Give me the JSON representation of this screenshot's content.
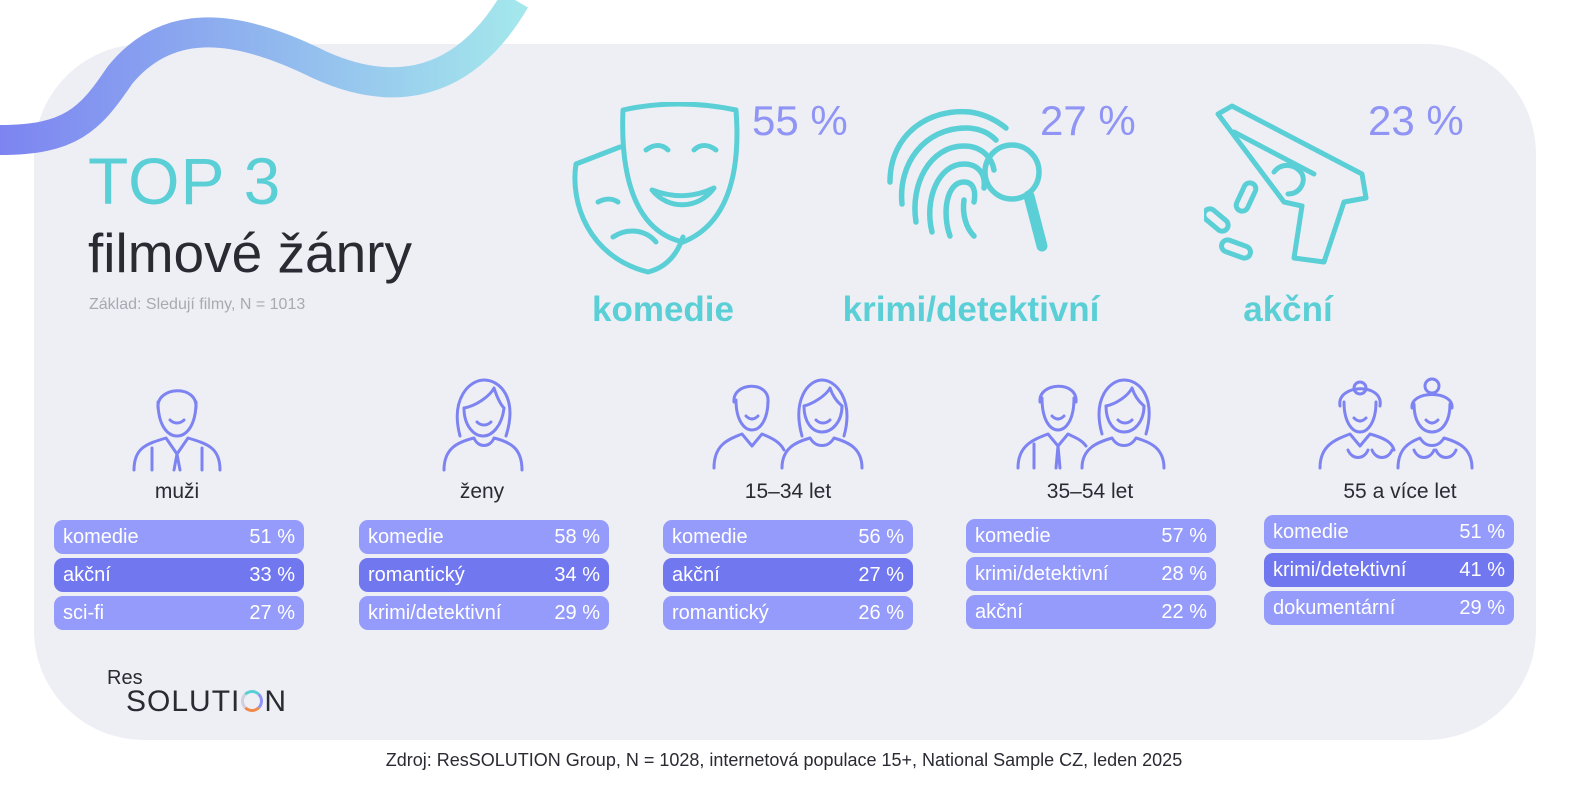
{
  "header": {
    "top": "TOP 3",
    "main": "filmové žánry",
    "basis": "Základ: Sledují filmy, N = 1013"
  },
  "top_genres": [
    {
      "label": "komedie",
      "pct": "55 %",
      "icon": "theater-masks-icon"
    },
    {
      "label": "krimi/detektivní",
      "pct": "27 %",
      "icon": "fingerprint-magnifier-icon"
    },
    {
      "label": "akční",
      "pct": "23 %",
      "icon": "pistol-icon"
    }
  ],
  "groups": [
    {
      "label": "muži",
      "icon": "man-icon",
      "rows": [
        [
          "komedie",
          "51 %"
        ],
        [
          "akční",
          "33 %"
        ],
        [
          "sci-fi",
          "27 %"
        ]
      ]
    },
    {
      "label": "ženy",
      "icon": "woman-icon",
      "rows": [
        [
          "komedie",
          "58 %"
        ],
        [
          "romantický",
          "34 %"
        ],
        [
          "krimi/detektivní",
          "29 %"
        ]
      ]
    },
    {
      "label": "15–34 let",
      "icon": "young-couple-icon",
      "rows": [
        [
          "komedie",
          "56 %"
        ],
        [
          "akční",
          "27 %"
        ],
        [
          "romantický",
          "26 %"
        ]
      ]
    },
    {
      "label": "35–54 let",
      "icon": "adult-couple-icon",
      "rows": [
        [
          "komedie",
          "57 %"
        ],
        [
          "krimi/detektivní",
          "28 %"
        ],
        [
          "akční",
          "22 %"
        ]
      ]
    },
    {
      "label": "55 a více let",
      "icon": "senior-couple-icon",
      "rows": [
        [
          "komedie",
          "51 %"
        ],
        [
          "krimi/detektivní",
          "41 %"
        ],
        [
          "dokumentární",
          "29 %"
        ]
      ]
    }
  ],
  "logo": {
    "res": "Res",
    "solution_a": "SOLUTI",
    "solution_b": "N"
  },
  "footer": {
    "source": "Zdroj: ResSOLUTION Group, N = 1028, internetová populace 15+, National Sample CZ, leden 2025"
  },
  "colors": {
    "teal": "#5bcfd6",
    "violet": "#8f94f5",
    "row_light": "#959bfa",
    "row_dark": "#7177ef",
    "panel": "#eeeff5"
  }
}
